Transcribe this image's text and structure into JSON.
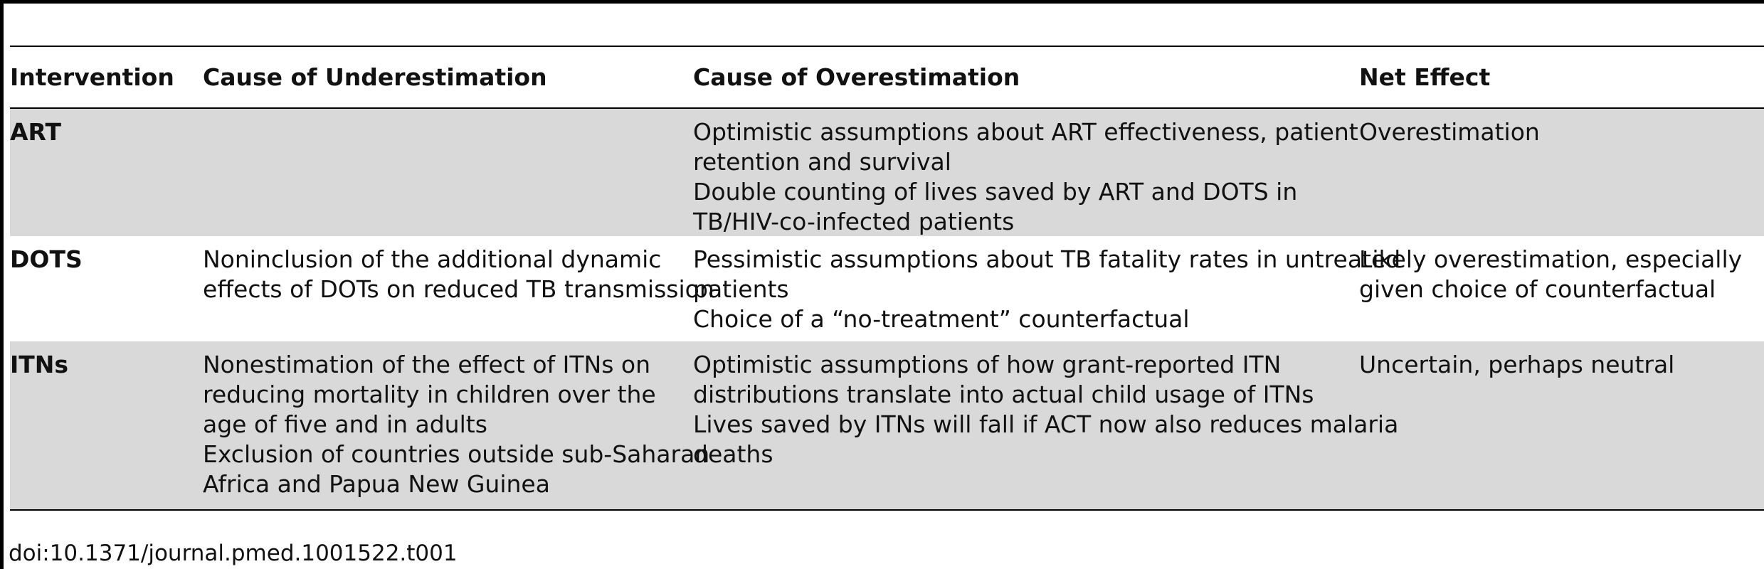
{
  "table": {
    "headers": [
      "Intervention",
      "Cause of Underestimation",
      "Cause of Overestimation",
      "Net Effect"
    ],
    "rows": [
      {
        "intervention": "ART",
        "under": [],
        "over": [
          "Optimistic assumptions about ART effectiveness, patient",
          "retention and survival",
          "Double counting of lives saved by ART and DOTS in",
          "TB/HIV-co-infected patients"
        ],
        "net": [
          "Overestimation"
        ]
      },
      {
        "intervention": "DOTS",
        "under": [
          "Noninclusion of the additional dynamic",
          "effects of DOTs on reduced TB transmission"
        ],
        "over": [
          "Pessimistic assumptions about TB fatality rates in untreated",
          "patients",
          "Choice of a “no-treatment” counterfactual"
        ],
        "net": [
          "Likely overestimation, especially",
          "given choice of counterfactual"
        ]
      },
      {
        "intervention": "ITNs",
        "under": [
          "Nonestimation of the effect of ITNs on",
          "reducing mortality in children over the",
          "age of five and in adults",
          "Exclusion of countries outside sub-Saharan",
          "Africa and Papua New Guinea"
        ],
        "over": [
          "Optimistic assumptions of how grant-reported ITN",
          "distributions translate into actual child usage of ITNs",
          "Lives saved by ITNs will fall if ACT now also reduces malaria",
          "deaths"
        ],
        "net": [
          "Uncertain, perhaps neutral"
        ]
      }
    ]
  },
  "footer": {
    "doi": "doi:10.1371/journal.pmed.1001522.t001"
  },
  "colors": {
    "shaded_row": "#d9d9d9",
    "rule": "#000000"
  }
}
